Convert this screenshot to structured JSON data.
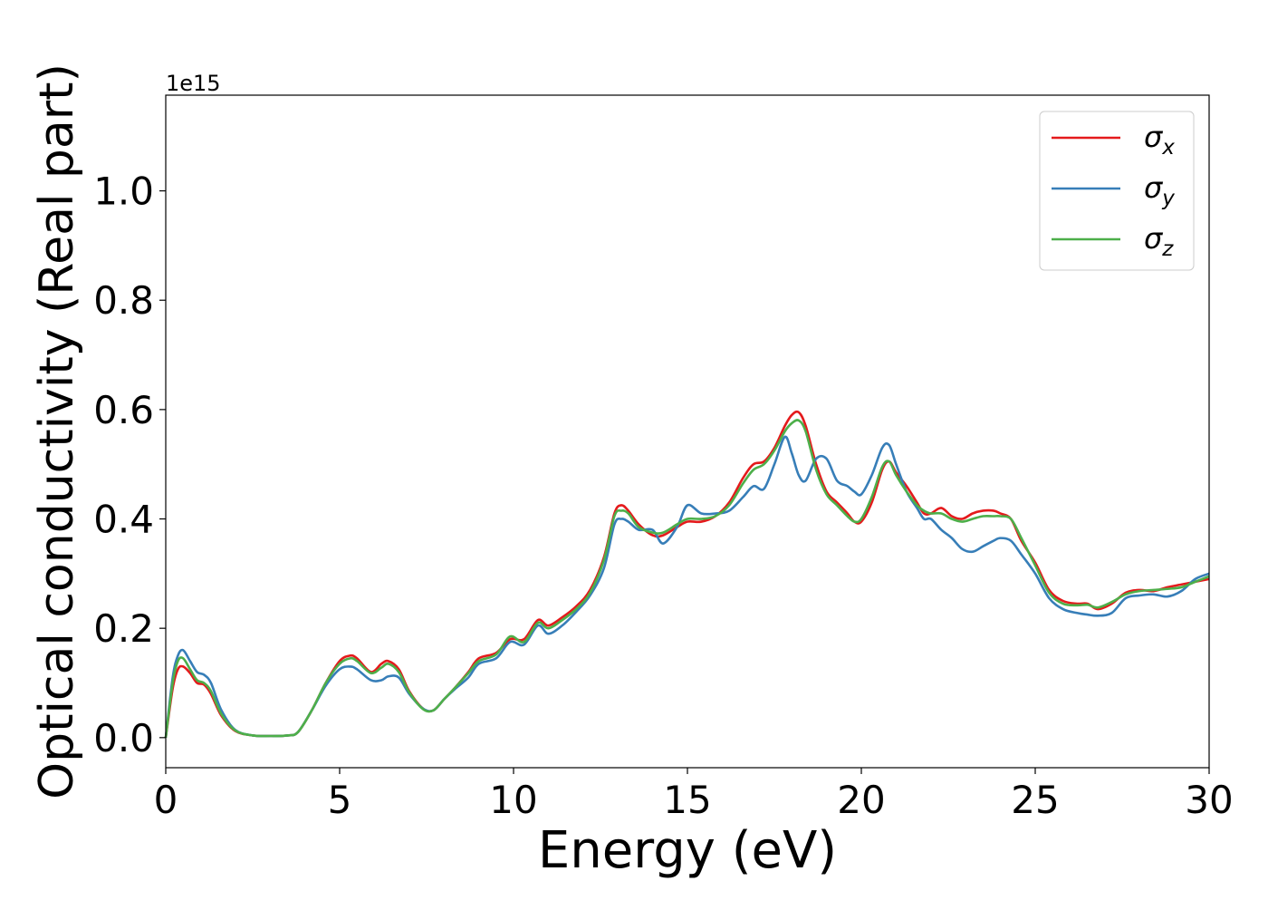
{
  "chart_data": {
    "type": "line",
    "title": "",
    "xlabel": "Energy (eV)",
    "ylabel": "Optical conductivity (Real part)",
    "y_offset_text": "1e15",
    "y_scale_factor": 1000000000000000.0,
    "xlim": [
      0,
      30
    ],
    "ylim": [
      -0.055,
      1.175
    ],
    "xticks": [
      0,
      5,
      10,
      15,
      20,
      25,
      30
    ],
    "xtick_labels": [
      "0",
      "5",
      "10",
      "15",
      "20",
      "25",
      "30"
    ],
    "yticks": [
      0.0,
      0.2,
      0.4,
      0.6,
      0.8,
      1.0
    ],
    "ytick_labels": [
      "0.0",
      "0.2",
      "0.4",
      "0.6",
      "0.8",
      "1.0"
    ],
    "grid": false,
    "legend_position": "top-right",
    "series": [
      {
        "name": "σ",
        "subscript": "x",
        "color": "#e41a1c",
        "x": [
          0,
          0.2,
          0.35,
          0.5,
          0.7,
          0.9,
          1.1,
          1.3,
          1.6,
          2.0,
          2.5,
          3.0,
          3.5,
          3.8,
          4.2,
          4.6,
          5.0,
          5.3,
          5.5,
          5.9,
          6.2,
          6.4,
          6.7,
          7.0,
          7.4,
          7.7,
          8.0,
          8.3,
          8.7,
          9.0,
          9.5,
          9.9,
          10.3,
          10.7,
          11.0,
          11.4,
          11.8,
          12.2,
          12.6,
          12.9,
          13.1,
          13.3,
          13.6,
          14.0,
          14.3,
          14.7,
          15.0,
          15.4,
          15.8,
          16.2,
          16.6,
          16.9,
          17.2,
          17.5,
          17.8,
          18.0,
          18.2,
          18.4,
          18.7,
          19.0,
          19.3,
          19.6,
          19.8,
          20.0,
          20.3,
          20.6,
          20.8,
          21.0,
          21.3,
          21.6,
          21.8,
          22.0,
          22.3,
          22.6,
          22.9,
          23.2,
          23.5,
          23.8,
          24.0,
          24.3,
          24.6,
          25.0,
          25.4,
          25.8,
          26.2,
          26.5,
          26.8,
          27.2,
          27.6,
          28.0,
          28.4,
          28.8,
          29.2,
          29.6,
          30.0
        ],
        "y": [
          0.0,
          0.09,
          0.125,
          0.13,
          0.118,
          0.1,
          0.097,
          0.08,
          0.04,
          0.012,
          0.004,
          0.003,
          0.004,
          0.01,
          0.05,
          0.1,
          0.14,
          0.15,
          0.145,
          0.12,
          0.135,
          0.14,
          0.125,
          0.085,
          0.053,
          0.05,
          0.07,
          0.09,
          0.12,
          0.145,
          0.155,
          0.18,
          0.18,
          0.215,
          0.205,
          0.22,
          0.24,
          0.27,
          0.33,
          0.41,
          0.425,
          0.415,
          0.39,
          0.37,
          0.37,
          0.385,
          0.395,
          0.395,
          0.405,
          0.43,
          0.475,
          0.5,
          0.505,
          0.53,
          0.57,
          0.59,
          0.595,
          0.57,
          0.5,
          0.45,
          0.43,
          0.41,
          0.395,
          0.395,
          0.43,
          0.49,
          0.505,
          0.485,
          0.46,
          0.43,
          0.41,
          0.41,
          0.42,
          0.405,
          0.4,
          0.41,
          0.415,
          0.415,
          0.41,
          0.4,
          0.36,
          0.32,
          0.27,
          0.25,
          0.245,
          0.245,
          0.235,
          0.245,
          0.265,
          0.27,
          0.268,
          0.275,
          0.28,
          0.285,
          0.29
        ]
      },
      {
        "name": "σ",
        "subscript": "y",
        "color": "#377eb8",
        "x": [
          0,
          0.2,
          0.35,
          0.5,
          0.7,
          0.9,
          1.1,
          1.3,
          1.6,
          2.0,
          2.5,
          3.0,
          3.5,
          3.8,
          4.2,
          4.6,
          5.0,
          5.3,
          5.5,
          5.9,
          6.2,
          6.4,
          6.7,
          7.0,
          7.4,
          7.7,
          8.0,
          8.3,
          8.7,
          9.0,
          9.5,
          9.9,
          10.3,
          10.7,
          11.0,
          11.4,
          11.8,
          12.2,
          12.6,
          12.9,
          13.1,
          13.3,
          13.6,
          14.0,
          14.3,
          14.7,
          15.0,
          15.4,
          15.8,
          16.2,
          16.6,
          16.9,
          17.2,
          17.5,
          17.8,
          18.0,
          18.2,
          18.4,
          18.7,
          19.0,
          19.3,
          19.6,
          19.8,
          20.0,
          20.3,
          20.6,
          20.8,
          21.0,
          21.3,
          21.6,
          21.8,
          22.0,
          22.3,
          22.6,
          22.9,
          23.2,
          23.5,
          23.8,
          24.0,
          24.3,
          24.6,
          25.0,
          25.4,
          25.8,
          26.2,
          26.5,
          26.8,
          27.2,
          27.6,
          28.0,
          28.4,
          28.8,
          29.2,
          29.6,
          30.0
        ],
        "y": [
          0.0,
          0.11,
          0.15,
          0.16,
          0.14,
          0.12,
          0.115,
          0.1,
          0.05,
          0.014,
          0.004,
          0.003,
          0.004,
          0.01,
          0.05,
          0.095,
          0.125,
          0.13,
          0.125,
          0.105,
          0.105,
          0.112,
          0.11,
          0.08,
          0.053,
          0.05,
          0.07,
          0.088,
          0.11,
          0.135,
          0.145,
          0.175,
          0.17,
          0.205,
          0.19,
          0.205,
          0.23,
          0.26,
          0.31,
          0.39,
          0.4,
          0.395,
          0.38,
          0.38,
          0.355,
          0.385,
          0.425,
          0.41,
          0.41,
          0.415,
          0.44,
          0.46,
          0.455,
          0.5,
          0.55,
          0.52,
          0.48,
          0.47,
          0.51,
          0.51,
          0.47,
          0.46,
          0.45,
          0.445,
          0.48,
          0.53,
          0.535,
          0.5,
          0.45,
          0.42,
          0.4,
          0.4,
          0.38,
          0.365,
          0.345,
          0.34,
          0.35,
          0.36,
          0.365,
          0.36,
          0.335,
          0.3,
          0.255,
          0.235,
          0.228,
          0.225,
          0.223,
          0.228,
          0.255,
          0.26,
          0.262,
          0.258,
          0.268,
          0.29,
          0.3
        ]
      },
      {
        "name": "σ",
        "subscript": "z",
        "color": "#4daf4a",
        "x": [
          0,
          0.2,
          0.35,
          0.5,
          0.7,
          0.9,
          1.1,
          1.3,
          1.6,
          2.0,
          2.5,
          3.0,
          3.5,
          3.8,
          4.2,
          4.6,
          5.0,
          5.3,
          5.5,
          5.9,
          6.2,
          6.4,
          6.7,
          7.0,
          7.4,
          7.7,
          8.0,
          8.3,
          8.7,
          9.0,
          9.5,
          9.9,
          10.3,
          10.7,
          11.0,
          11.4,
          11.8,
          12.2,
          12.6,
          12.9,
          13.1,
          13.3,
          13.6,
          14.0,
          14.3,
          14.7,
          15.0,
          15.4,
          15.8,
          16.2,
          16.6,
          16.9,
          17.2,
          17.5,
          17.8,
          18.0,
          18.2,
          18.4,
          18.7,
          19.0,
          19.3,
          19.6,
          19.8,
          20.0,
          20.3,
          20.6,
          20.8,
          21.0,
          21.3,
          21.6,
          21.8,
          22.0,
          22.3,
          22.6,
          22.9,
          23.2,
          23.5,
          23.8,
          24.0,
          24.3,
          24.6,
          25.0,
          25.4,
          25.8,
          26.2,
          26.5,
          26.8,
          27.2,
          27.6,
          28.0,
          28.4,
          28.8,
          29.2,
          29.6,
          30.0
        ],
        "y": [
          0.0,
          0.1,
          0.14,
          0.145,
          0.125,
          0.105,
          0.1,
          0.085,
          0.043,
          0.013,
          0.004,
          0.003,
          0.004,
          0.01,
          0.05,
          0.1,
          0.135,
          0.145,
          0.14,
          0.118,
          0.128,
          0.135,
          0.12,
          0.083,
          0.052,
          0.05,
          0.07,
          0.09,
          0.118,
          0.14,
          0.152,
          0.185,
          0.175,
          0.21,
          0.2,
          0.215,
          0.235,
          0.265,
          0.325,
          0.405,
          0.415,
          0.41,
          0.385,
          0.375,
          0.375,
          0.39,
          0.4,
          0.4,
          0.405,
          0.425,
          0.465,
          0.49,
          0.5,
          0.525,
          0.56,
          0.575,
          0.58,
          0.56,
          0.49,
          0.445,
          0.425,
          0.405,
          0.395,
          0.4,
          0.44,
          0.495,
          0.505,
          0.48,
          0.45,
          0.425,
          0.415,
          0.41,
          0.41,
          0.4,
          0.395,
          0.4,
          0.405,
          0.405,
          0.405,
          0.4,
          0.365,
          0.315,
          0.265,
          0.245,
          0.242,
          0.243,
          0.238,
          0.248,
          0.262,
          0.268,
          0.27,
          0.272,
          0.275,
          0.285,
          0.295
        ]
      }
    ]
  }
}
